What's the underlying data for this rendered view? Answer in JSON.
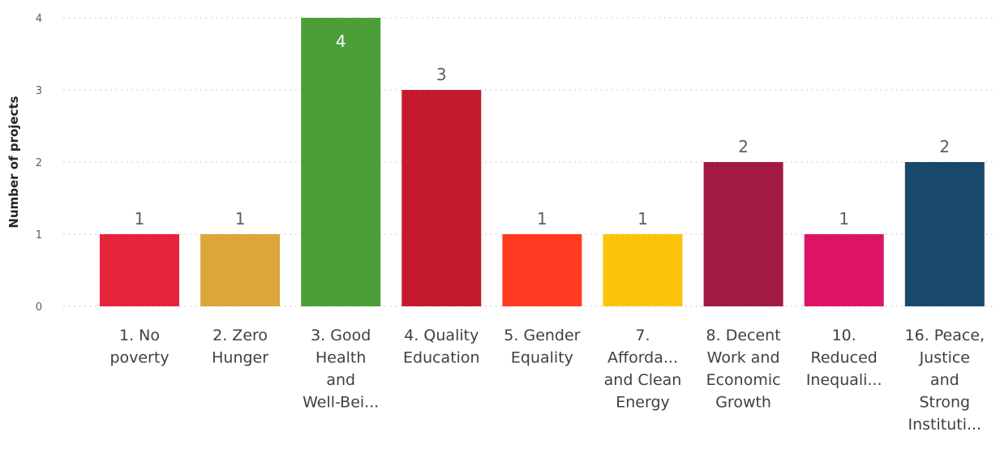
{
  "chart_data": {
    "type": "bar",
    "ylabel": "Number of projects",
    "ylim": [
      0,
      4
    ],
    "yticks": [
      0,
      1,
      2,
      3,
      4
    ],
    "grid": true,
    "categories": [
      [
        "1. No",
        "poverty"
      ],
      [
        "2. Zero",
        "Hunger"
      ],
      [
        "3. Good",
        "Health",
        "and",
        "Well-Bei..."
      ],
      [
        "4. Quality",
        "Education"
      ],
      [
        "5. Gender",
        "Equality"
      ],
      [
        "7.",
        "Afforda...",
        "and Clean",
        "Energy"
      ],
      [
        "8. Decent",
        "Work and",
        "Economic",
        "Growth"
      ],
      [
        "10.",
        "Reduced",
        "Inequali..."
      ],
      [
        "16. Peace,",
        "Justice",
        "and",
        "Strong",
        "Instituti..."
      ]
    ],
    "values": [
      1,
      1,
      4,
      3,
      1,
      1,
      2,
      1,
      2
    ],
    "data_labels": [
      "1",
      "1",
      "4",
      "3",
      "1",
      "1",
      "2",
      "1",
      "2"
    ],
    "colors": [
      "#e5243b",
      "#dda63a",
      "#4c9f38",
      "#c5192d",
      "#ff3a21",
      "#fcc30b",
      "#a21942",
      "#dd1367",
      "#19486a"
    ]
  }
}
